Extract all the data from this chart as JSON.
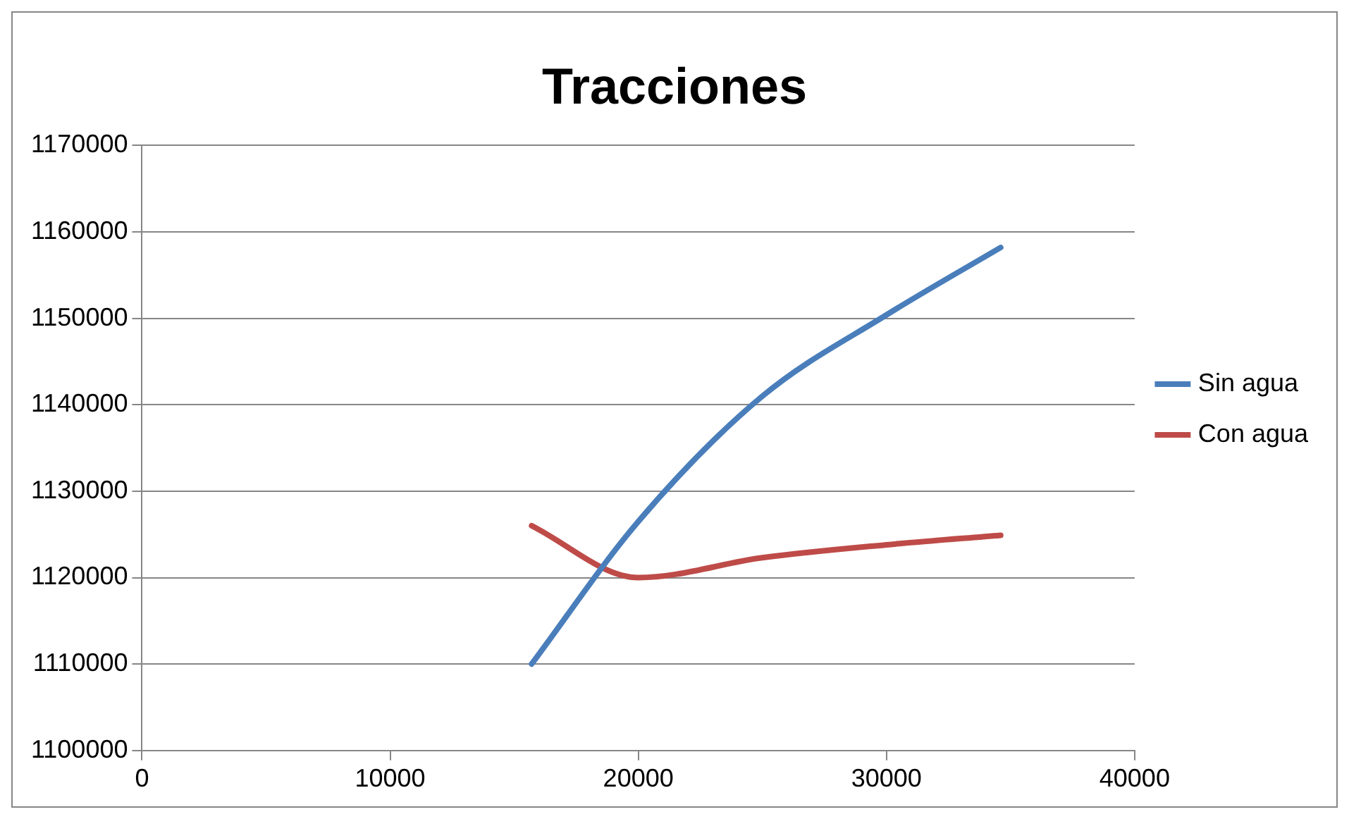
{
  "chart_data": {
    "type": "line",
    "title": "Tracciones",
    "xlim": [
      0,
      40000
    ],
    "xticks": [
      0,
      10000,
      20000,
      30000,
      40000
    ],
    "ylim": [
      1100000,
      1170000
    ],
    "yticks": [
      1100000,
      1110000,
      1120000,
      1130000,
      1140000,
      1150000,
      1160000,
      1170000
    ],
    "grid": "y",
    "legend": "right",
    "marker": "none",
    "line_style": "solid",
    "series": [
      {
        "name": "Sin agua",
        "color": "#4a7ebb",
        "x": [
          15700,
          20000,
          25000,
          30000,
          34600
        ],
        "values": [
          1110000,
          1126500,
          1141000,
          1150400,
          1158200
        ]
      },
      {
        "name": "Con agua",
        "color": "#be4b48",
        "x": [
          15700,
          20000,
          25000,
          30000,
          34600
        ],
        "values": [
          1126000,
          1120000,
          1122300,
          1123800,
          1124900
        ]
      }
    ]
  }
}
